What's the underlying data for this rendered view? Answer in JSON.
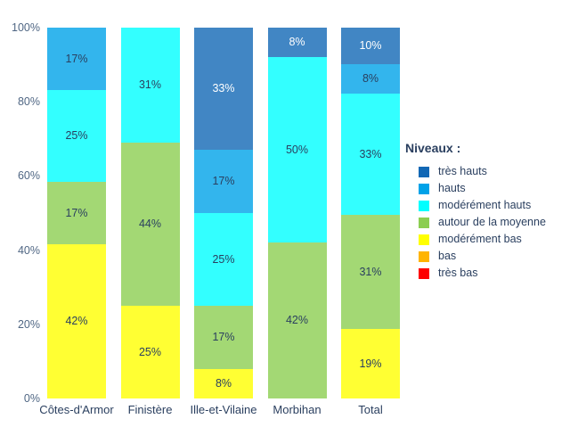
{
  "chart_data": {
    "type": "bar",
    "mode": "stacked",
    "unit": "percent",
    "title": "",
    "xlabel": "",
    "ylabel": "",
    "categories": [
      "Côtes-d'Armor",
      "Finistère",
      "Ille-et-Vilaine",
      "Morbihan",
      "Total"
    ],
    "series": [
      {
        "name": "très hauts",
        "color": "#1268B5",
        "label_color": "#ffffff",
        "values": [
          0,
          0,
          33,
          8,
          10
        ]
      },
      {
        "name": "hauts",
        "color": "#00A2E8",
        "label_color": "#2a3f5f",
        "values": [
          17,
          0,
          17,
          0,
          8
        ]
      },
      {
        "name": "modérément hauts",
        "color": "#00FFFF",
        "label_color": "#2a3f5f",
        "values": [
          25,
          31,
          25,
          50,
          33
        ]
      },
      {
        "name": "autour de la moyenne",
        "color": "#8CCE51",
        "label_color": "#2a3f5f",
        "values": [
          17,
          44,
          17,
          42,
          31
        ]
      },
      {
        "name": "modérément bas",
        "color": "#FFFF00",
        "label_color": "#2a3f5f",
        "values": [
          42,
          25,
          8,
          0,
          19
        ]
      },
      {
        "name": "bas",
        "color": "#FFB400",
        "label_color": "#2a3f5f",
        "values": [
          0,
          0,
          0,
          0,
          0
        ]
      },
      {
        "name": "très bas",
        "color": "#FE0000",
        "label_color": "#2a3f5f",
        "values": [
          0,
          0,
          0,
          0,
          0
        ]
      }
    ],
    "bar_label_format": "{value}%",
    "y_axis": {
      "ticks": [
        0,
        20,
        40,
        60,
        80,
        100
      ],
      "tick_labels": [
        "0%",
        "20%",
        "40%",
        "60%",
        "80%",
        "100%"
      ],
      "range": [
        0,
        100
      ]
    },
    "grid": false,
    "legend": {
      "title": "Niveaux :",
      "position": "right"
    },
    "style": {
      "bar_fill_opacity": 0.8,
      "tick_label_color": "#506784",
      "axis_label_color": "#2a3f5f",
      "legend_text_color": "#2a3f5f",
      "background": "#ffffff"
    }
  }
}
